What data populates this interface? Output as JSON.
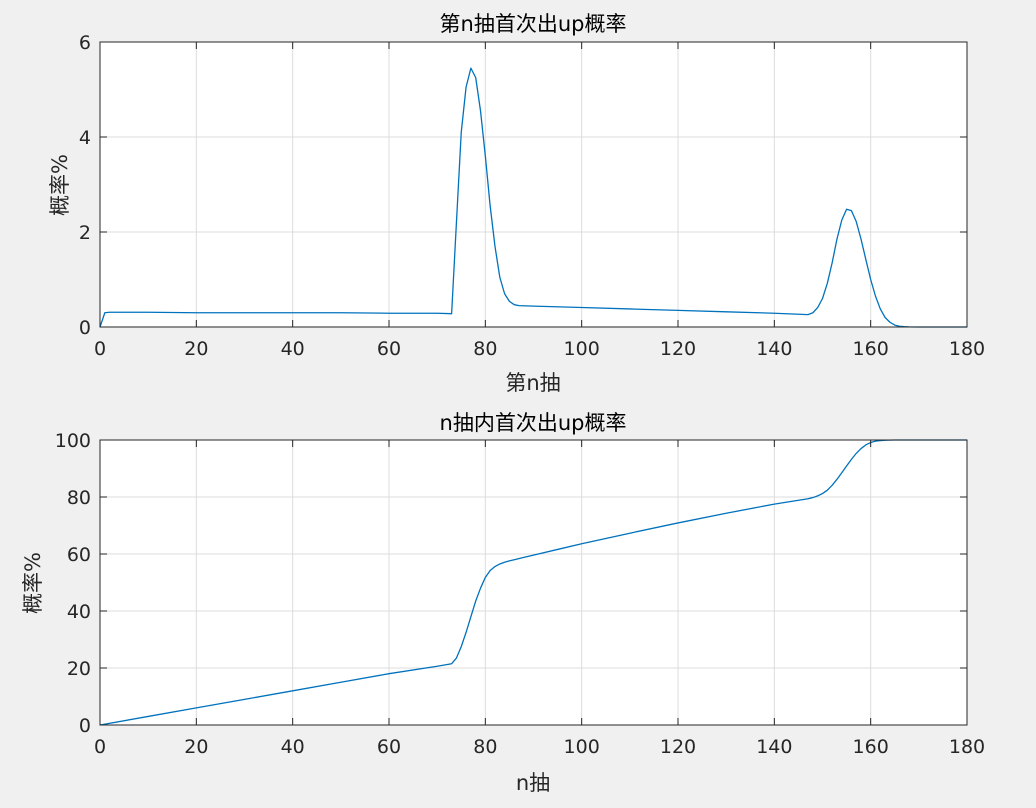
{
  "chart_data": [
    {
      "type": "line",
      "title": "第n抽首次出up概率",
      "xlabel": "第n抽",
      "ylabel": "概率%",
      "xlim": [
        0,
        180
      ],
      "ylim": [
        0,
        6
      ],
      "xticks": [
        0,
        20,
        40,
        60,
        80,
        100,
        120,
        140,
        160,
        180
      ],
      "yticks": [
        0,
        2,
        4,
        6
      ],
      "grid": true,
      "color": "#0072BD",
      "series": [
        {
          "x": [
            0,
            1,
            2,
            5,
            10,
            20,
            30,
            40,
            50,
            60,
            70,
            73,
            74,
            75,
            76,
            77,
            78,
            79,
            80,
            81,
            82,
            83,
            84,
            85,
            86,
            87,
            90,
            100,
            110,
            120,
            130,
            140,
            147,
            148,
            149,
            150,
            151,
            152,
            153,
            154,
            155,
            156,
            157,
            158,
            159,
            160,
            161,
            162,
            163,
            164,
            165,
            166,
            167,
            168,
            170,
            175,
            180
          ],
          "y": [
            0,
            0.3,
            0.31,
            0.31,
            0.31,
            0.3,
            0.3,
            0.3,
            0.3,
            0.29,
            0.29,
            0.28,
            2.2,
            4.1,
            5.05,
            5.45,
            5.25,
            4.55,
            3.6,
            2.55,
            1.7,
            1.05,
            0.7,
            0.54,
            0.47,
            0.45,
            0.44,
            0.41,
            0.38,
            0.35,
            0.32,
            0.29,
            0.26,
            0.3,
            0.41,
            0.6,
            0.92,
            1.35,
            1.85,
            2.25,
            2.48,
            2.45,
            2.22,
            1.85,
            1.42,
            1.0,
            0.65,
            0.38,
            0.2,
            0.1,
            0.04,
            0.015,
            0.006,
            0.002,
            0,
            0,
            0
          ]
        }
      ]
    },
    {
      "type": "line",
      "title": "n抽内首次出up概率",
      "xlabel": "n抽",
      "ylabel": "概率%",
      "xlim": [
        0,
        180
      ],
      "ylim": [
        0,
        100
      ],
      "xticks": [
        0,
        20,
        40,
        60,
        80,
        100,
        120,
        140,
        160,
        180
      ],
      "yticks": [
        0,
        20,
        40,
        60,
        80,
        100
      ],
      "grid": true,
      "color": "#0072BD",
      "series": [
        {
          "x": [
            0,
            10,
            20,
            30,
            40,
            50,
            60,
            70,
            73,
            74,
            75,
            76,
            77,
            78,
            79,
            80,
            81,
            82,
            83,
            84,
            85,
            86,
            88,
            90,
            95,
            100,
            110,
            120,
            130,
            140,
            147,
            148,
            149,
            150,
            151,
            152,
            153,
            154,
            155,
            156,
            157,
            158,
            159,
            160,
            161,
            162,
            163,
            164,
            165,
            166,
            168,
            170,
            175,
            180
          ],
          "y": [
            0,
            3,
            6,
            9,
            12,
            15,
            18,
            20.6,
            21.5,
            23.5,
            27.5,
            32.5,
            38,
            43.5,
            48,
            51.8,
            54.2,
            55.6,
            56.5,
            57.1,
            57.6,
            58,
            58.8,
            59.6,
            61.6,
            63.6,
            67.3,
            70.9,
            74.3,
            77.5,
            79.4,
            79.8,
            80.4,
            81.2,
            82.4,
            84.1,
            86.2,
            88.5,
            90.9,
            93.2,
            95.3,
            97,
            98.3,
            99.1,
            99.6,
            99.8,
            99.92,
            99.97,
            99.99,
            100,
            100,
            100,
            100,
            100
          ]
        }
      ]
    }
  ]
}
